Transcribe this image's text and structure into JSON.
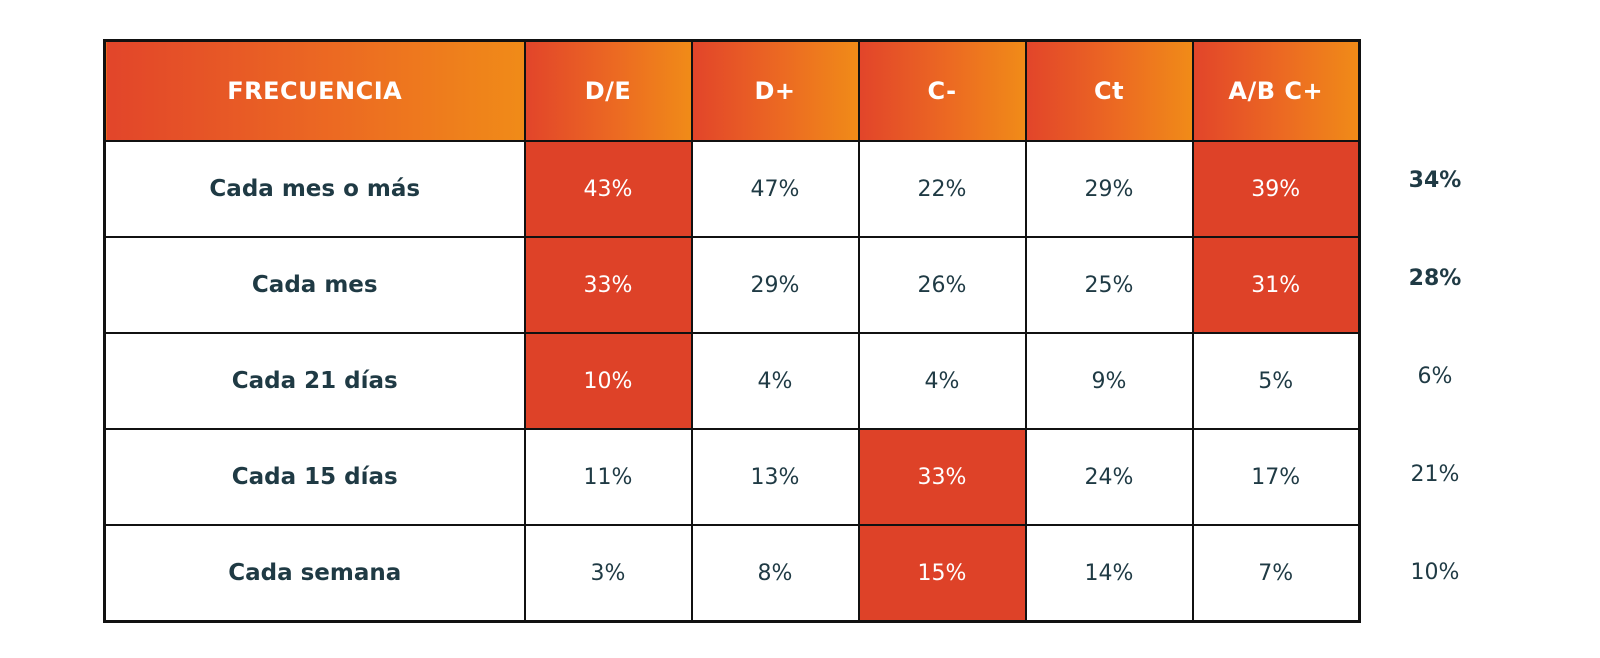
{
  "chart_data": {
    "type": "table",
    "header": [
      "FRECUENCIA",
      "D/E",
      "D+",
      "C-",
      "Ct",
      "A/B C+"
    ],
    "rows": [
      {
        "label": "Cada mes o más",
        "values": [
          "43%",
          "47%",
          "22%",
          "29%",
          "39%"
        ],
        "highlight": [
          true,
          false,
          false,
          false,
          true
        ],
        "total": "34%",
        "total_bold": true
      },
      {
        "label": "Cada mes",
        "values": [
          "33%",
          "29%",
          "26%",
          "25%",
          "31%"
        ],
        "highlight": [
          true,
          false,
          false,
          false,
          true
        ],
        "total": "28%",
        "total_bold": true
      },
      {
        "label": "Cada 21 días",
        "values": [
          "10%",
          "4%",
          "4%",
          "9%",
          "5%"
        ],
        "highlight": [
          true,
          false,
          false,
          false,
          false
        ],
        "total": "6%",
        "total_bold": false
      },
      {
        "label": "Cada 15 días",
        "values": [
          "11%",
          "13%",
          "33%",
          "24%",
          "17%"
        ],
        "highlight": [
          false,
          false,
          true,
          false,
          false
        ],
        "total": "21%",
        "total_bold": false
      },
      {
        "label": "Cada semana",
        "values": [
          "3%",
          "8%",
          "15%",
          "14%",
          "7%"
        ],
        "highlight": [
          false,
          false,
          true,
          false,
          false
        ],
        "total": "10%",
        "total_bold": false
      }
    ]
  },
  "colors": {
    "highlight": "#de4228",
    "header_gradient_start": "#e2452a",
    "header_gradient_end": "#f08b18",
    "text": "#1f3a44"
  }
}
